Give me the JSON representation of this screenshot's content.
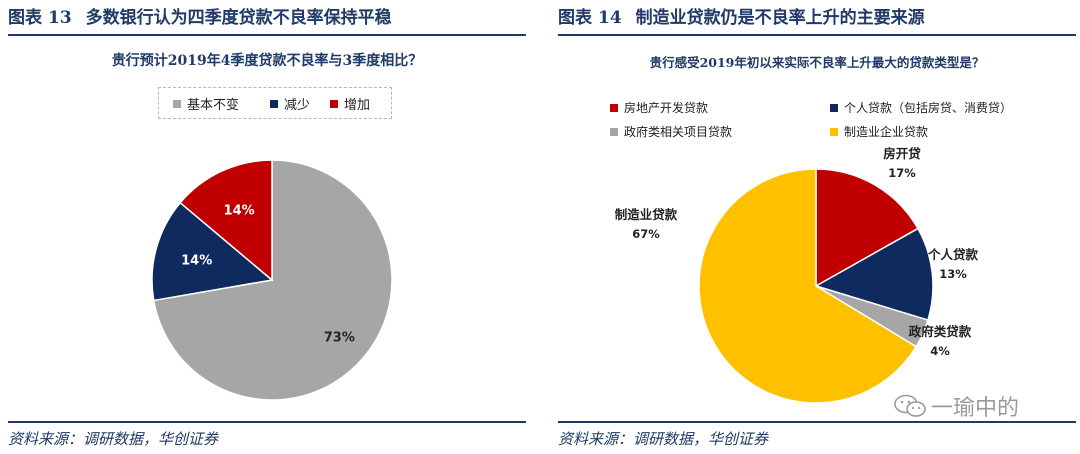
{
  "figures": [
    {
      "label": "图表",
      "number": "13",
      "title": "多数银行认为四季度贷款不良率保持平稳",
      "source": "资料来源：调研数据，华创证券"
    },
    {
      "label": "图表",
      "number": "14",
      "title": "制造业贷款仍是不良率上升的主要来源",
      "source": "资料来源：调研数据，华创证券"
    }
  ],
  "chart_data": [
    {
      "type": "pie",
      "title": "贵行预计2019年4季度贷款不良率与3季度相比？",
      "legend_position": "top",
      "slices": [
        {
          "name": "基本不变",
          "value": 73,
          "label": "73%",
          "color": "#a6a6a6"
        },
        {
          "name": "减少",
          "value": 14,
          "label": "14%",
          "color": "#0f2a5e"
        },
        {
          "name": "增加",
          "value": 14,
          "label": "14%",
          "color": "#c00000"
        }
      ]
    },
    {
      "type": "pie",
      "title": "贵行感受2019年初以来实际不良率上升最大的贷款类型是？",
      "legend_position": "top-left",
      "legend": [
        {
          "name": "房地产开发贷款",
          "color": "#c00000"
        },
        {
          "name": "个人贷款（包括房贷、消费贷）",
          "color": "#0f2a5e"
        },
        {
          "name": "政府类相关项目贷款",
          "color": "#a6a6a6"
        },
        {
          "name": "制造业企业贷款",
          "color": "#ffc000"
        }
      ],
      "slices": [
        {
          "name": "房开贷",
          "value": 17,
          "label": "17%",
          "color": "#c00000"
        },
        {
          "name": "个人贷款",
          "value": 13,
          "label": "13%",
          "color": "#0f2a5e"
        },
        {
          "name": "政府类贷款",
          "value": 4,
          "label": "4%",
          "color": "#a6a6a6"
        },
        {
          "name": "制造业贷款",
          "value": 67,
          "label": "67%",
          "color": "#ffc000"
        }
      ]
    }
  ],
  "watermark": "一瑜中的"
}
